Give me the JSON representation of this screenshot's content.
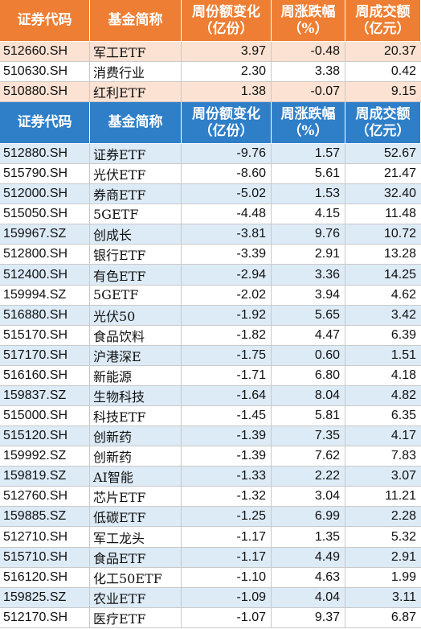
{
  "top_table": {
    "header": [
      [
        "证券代码"
      ],
      [
        "基金简称"
      ],
      [
        "周份额变化",
        "（亿份）"
      ],
      [
        "周涨跌幅",
        "（%）"
      ],
      [
        "周成交额",
        "（亿元）"
      ]
    ],
    "rows": [
      [
        "512660.SH",
        "军工ETF",
        "3.97",
        "-0.48",
        "20.37"
      ],
      [
        "510630.SH",
        "消费行业",
        "2.30",
        "3.38",
        "0.42"
      ],
      [
        "510880.SH",
        "红利ETF",
        "1.38",
        "-0.07",
        "9.15"
      ]
    ]
  },
  "bottom_table": {
    "header": [
      [
        "证券代码"
      ],
      [
        "基金简称"
      ],
      [
        "周份额变化",
        "（亿份）"
      ],
      [
        "周涨跌幅",
        "（%）"
      ],
      [
        "周成交额",
        "（亿元）"
      ]
    ],
    "rows": [
      [
        "512880.SH",
        "证券ETF",
        "-9.76",
        "1.57",
        "52.67"
      ],
      [
        "515790.SH",
        "光伏ETF",
        "-8.60",
        "5.61",
        "21.47"
      ],
      [
        "512000.SH",
        "券商ETF",
        "-5.02",
        "1.53",
        "32.40"
      ],
      [
        "515050.SH",
        "5GETF",
        "-4.48",
        "4.15",
        "11.48"
      ],
      [
        "159967.SZ",
        "创成长",
        "-3.81",
        "9.76",
        "10.72"
      ],
      [
        "512800.SH",
        "银行ETF",
        "-3.39",
        "2.91",
        "13.28"
      ],
      [
        "512400.SH",
        "有色ETF",
        "-2.94",
        "3.36",
        "14.25"
      ],
      [
        "159994.SZ",
        "5GETF",
        "-2.02",
        "3.94",
        "4.62"
      ],
      [
        "516880.SH",
        "光伏50",
        "-1.92",
        "5.65",
        "3.42"
      ],
      [
        "515170.SH",
        "食品饮料",
        "-1.82",
        "4.47",
        "6.39"
      ],
      [
        "517170.SH",
        "沪港深E",
        "-1.75",
        "0.60",
        "1.51"
      ],
      [
        "516160.SH",
        "新能源",
        "-1.71",
        "6.80",
        "4.18"
      ],
      [
        "159837.SZ",
        "生物科技",
        "-1.64",
        "8.04",
        "4.82"
      ],
      [
        "515000.SH",
        "科技ETF",
        "-1.45",
        "5.81",
        "6.35"
      ],
      [
        "515120.SH",
        "创新药",
        "-1.39",
        "7.35",
        "4.17"
      ],
      [
        "159992.SZ",
        "创新药",
        "-1.39",
        "7.62",
        "7.83"
      ],
      [
        "159819.SZ",
        "AI智能",
        "-1.33",
        "2.22",
        "3.07"
      ],
      [
        "512760.SH",
        "芯片ETF",
        "-1.32",
        "3.04",
        "11.21"
      ],
      [
        "159885.SZ",
        "低碳ETF",
        "-1.25",
        "6.99",
        "2.28"
      ],
      [
        "512710.SH",
        "军工龙头",
        "-1.17",
        "1.35",
        "5.32"
      ],
      [
        "515710.SH",
        "食品ETF",
        "-1.17",
        "4.49",
        "2.91"
      ],
      [
        "516120.SH",
        "化工50ETF",
        "-1.10",
        "4.63",
        "1.99"
      ],
      [
        "159825.SZ",
        "农业ETF",
        "-1.09",
        "4.04",
        "3.11"
      ],
      [
        "512170.SH",
        "医疗ETF",
        "-1.07",
        "9.37",
        "6.87"
      ]
    ]
  }
}
